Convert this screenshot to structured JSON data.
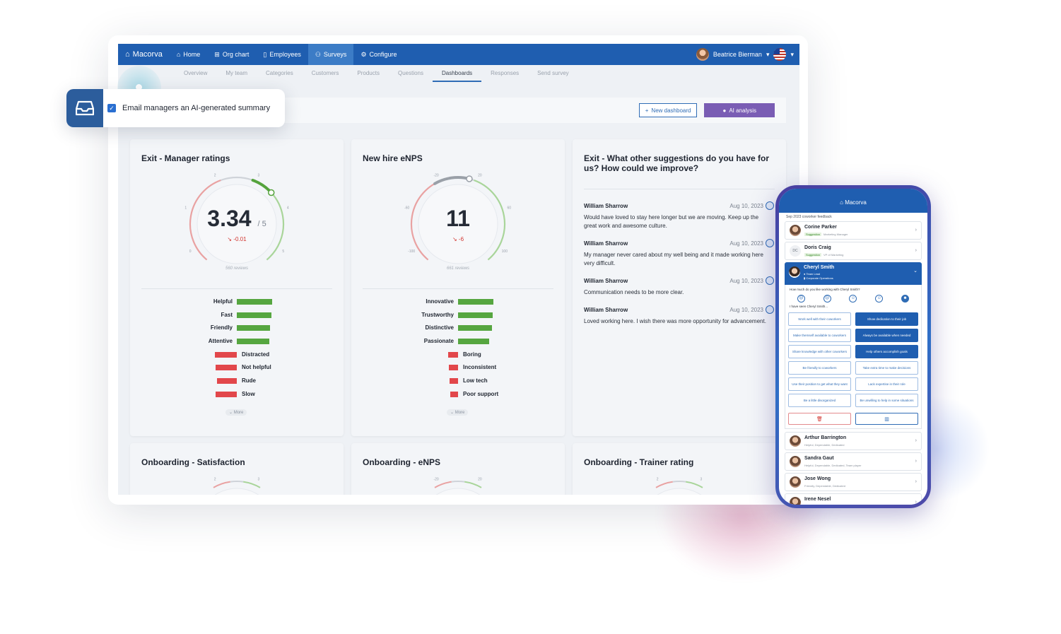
{
  "colors": {
    "accent": "#1f5eb0",
    "ai": "#7a5db4",
    "positive": "#56a640",
    "negative": "#e2474b",
    "delta": "#d2342e"
  },
  "app": {
    "brand": "Macorva",
    "nav": [
      {
        "label": "Home",
        "icon": "home-icon"
      },
      {
        "label": "Org chart",
        "icon": "org-chart-icon"
      },
      {
        "label": "Employees",
        "icon": "clipboard-icon"
      },
      {
        "label": "Surveys",
        "icon": "users-icon",
        "active": true
      },
      {
        "label": "Configure",
        "icon": "gear-icon"
      }
    ],
    "user": "Beatrice Bierman"
  },
  "subnav": [
    "Overview",
    "My team",
    "Categories",
    "Customers",
    "Products",
    "Questions",
    "Dashboards",
    "Responses",
    "Send survey"
  ],
  "subnav_active": "Dashboards",
  "actions": {
    "new_dashboard": "New dashboard",
    "ai_analysis": "AI analysis"
  },
  "popup": {
    "text": "Email managers an AI-generated summary",
    "checked": true
  },
  "cards": {
    "manager": {
      "title": "Exit - Manager ratings",
      "value": "3.34",
      "scale": "/ 5",
      "delta": "-0.01",
      "reviews": "560 reviews",
      "ticks": [
        "0",
        "1",
        "2",
        "3",
        "4",
        "5"
      ],
      "gauge_fraction": 0.67,
      "positive": [
        {
          "label": "Helpful",
          "value": 1.0
        },
        {
          "label": "Fast",
          "value": 0.98
        },
        {
          "label": "Friendly",
          "value": 0.94
        },
        {
          "label": "Attentive",
          "value": 0.92
        }
      ],
      "negative": [
        {
          "label": "Distracted",
          "value": 0.62
        },
        {
          "label": "Not helpful",
          "value": 0.6
        },
        {
          "label": "Rude",
          "value": 0.56
        },
        {
          "label": "Slow",
          "value": 0.6
        }
      ],
      "more": "More"
    },
    "enps": {
      "title": "New hire eNPS",
      "value": "11",
      "delta": "-6",
      "reviews": "661 reviews",
      "ticks": [
        "-100",
        "-60",
        "-20",
        "20",
        "60",
        "100"
      ],
      "gauge_fraction": 0.55,
      "positive": [
        {
          "label": "Innovative",
          "value": 1.0
        },
        {
          "label": "Trustworthy",
          "value": 0.98
        },
        {
          "label": "Distinctive",
          "value": 0.96
        },
        {
          "label": "Passionate",
          "value": 0.88
        }
      ],
      "negative": [
        {
          "label": "Boring",
          "value": 0.28
        },
        {
          "label": "Inconsistent",
          "value": 0.26
        },
        {
          "label": "Low tech",
          "value": 0.24
        },
        {
          "label": "Poor support",
          "value": 0.22
        }
      ],
      "more": "More"
    },
    "suggest": {
      "title": "Exit - What other suggestions do you have for us? How could we improve?",
      "items": [
        {
          "name": "William Sharrow",
          "date": "Aug 10, 2023",
          "text": "Would have loved to stay here longer but we are moving. Keep up the great work and awesome culture."
        },
        {
          "name": "William Sharrow",
          "date": "Aug 10, 2023",
          "text": "My manager never cared about my well being and it made working here very difficult."
        },
        {
          "name": "William Sharrow",
          "date": "Aug 10, 2023",
          "text": "Communication needs to be more clear."
        },
        {
          "name": "William Sharrow",
          "date": "Aug 10, 2023",
          "text": "Loved working here. I wish there was more opportunity for advancement."
        }
      ]
    },
    "onb_sat": {
      "title": "Onboarding - Satisfaction",
      "ticks": [
        "2",
        "3"
      ]
    },
    "onb_enps": {
      "title": "Onboarding - eNPS",
      "ticks": [
        "-20",
        "20"
      ]
    },
    "onb_trainer": {
      "title": "Onboarding - Trainer rating",
      "ticks": [
        "2",
        "3"
      ]
    }
  },
  "phone": {
    "brand": "Macorva",
    "caption": "Sep 2023 coworker feedback",
    "top": [
      {
        "name": "Corine Parker",
        "tag": "Suggestion",
        "role": "Marketing Manager"
      },
      {
        "name": "Doris Craig",
        "initials": "DC",
        "tag": "Suggestion",
        "role": "VP of Marketing"
      }
    ],
    "expanded": {
      "name": "Cheryl Smith",
      "role": "Team Lead",
      "dept": "Corporate Operations",
      "question": "How much do you like working with Cheryl Smith?",
      "seen": "I have seen Cheryl Smith...",
      "selected_face": 5,
      "chips": [
        {
          "label": "Work well with their coworkers",
          "sel": false
        },
        {
          "label": "Show dedication to their job",
          "sel": true
        },
        {
          "label": "Make themself available to coworkers",
          "sel": false
        },
        {
          "label": "Always be available when needed",
          "sel": true
        },
        {
          "label": "Share knowledge with other coworkers",
          "sel": false
        },
        {
          "label": "Help others accomplish goals",
          "sel": true
        },
        {
          "label": "Be friendly to coworkers",
          "sel": false
        },
        {
          "label": "Take extra time to make decisions",
          "sel": false
        },
        {
          "label": "Use their position to get what they want",
          "sel": false
        },
        {
          "label": "Lack expertise in their role",
          "sel": false
        },
        {
          "label": "Be a little disorganized",
          "sel": false
        },
        {
          "label": "Be unwilling to help in some situations",
          "sel": false
        }
      ]
    },
    "bottom": [
      {
        "name": "Arthur Barrington",
        "traits": "Helpful, Dependable, Dedicated"
      },
      {
        "name": "Sandra Gaut",
        "traits": "Helpful, Dependable, Dedicated, Team player"
      },
      {
        "name": "Jose Wong",
        "traits": "Friendly, Dependable, Dedicated"
      },
      {
        "name": "Irene Nesel",
        "traits": ""
      }
    ]
  }
}
